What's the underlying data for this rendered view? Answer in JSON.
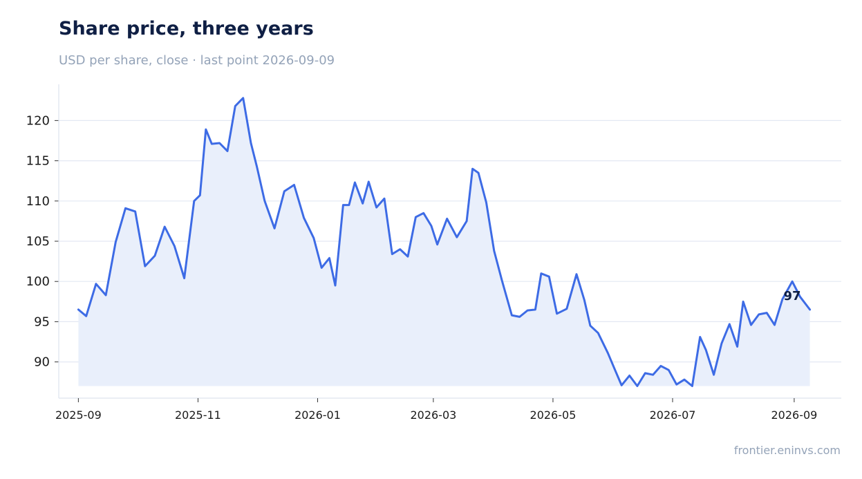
{
  "header": {
    "title": "Share price, three years",
    "subtitle": "USD per share, close · last point 2026-09-09"
  },
  "footer": {
    "source": "frontier.eninvs.com"
  },
  "colors": {
    "line": "#3d6be5",
    "fill": "#e9effb",
    "grid": "#e3e8f3",
    "axis": "#dde3ee"
  },
  "chart_data": {
    "type": "area",
    "title": "Share price, three years",
    "subtitle": "USD per share, close · last point 2026-09-09",
    "xlabel": "",
    "ylabel": "",
    "xlim": [
      "2025-08-22",
      "2026-09-25"
    ],
    "ylim": [
      85.5,
      124.5
    ],
    "grid": true,
    "legend": "none",
    "x_ticks": [
      {
        "date": "2025-09-01",
        "label": "2025-09"
      },
      {
        "date": "2025-11-01",
        "label": "2025-11"
      },
      {
        "date": "2026-01-01",
        "label": "2026-01"
      },
      {
        "date": "2026-03-01",
        "label": "2026-03"
      },
      {
        "date": "2026-05-01",
        "label": "2026-05"
      },
      {
        "date": "2026-07-01",
        "label": "2026-07"
      },
      {
        "date": "2026-09-01",
        "label": "2026-09"
      }
    ],
    "y_ticks": [
      90,
      95,
      100,
      105,
      110,
      115,
      120
    ],
    "fill_baseline": 87,
    "annotation": {
      "text": "97",
      "x": "2026-08-31",
      "y": 98.3
    },
    "series": [
      {
        "x": [
          "2025-09-01",
          "2025-09-05",
          "2025-09-10",
          "2025-09-15",
          "2025-09-20",
          "2025-09-25",
          "2025-09-30",
          "2025-10-05",
          "2025-10-10",
          "2025-10-15",
          "2025-10-20",
          "2025-10-25",
          "2025-10-30",
          "2025-11-02",
          "2025-11-05",
          "2025-11-08",
          "2025-11-12",
          "2025-11-16",
          "2025-11-20",
          "2025-11-24",
          "2025-11-28",
          "2025-12-01",
          "2025-12-05",
          "2025-12-10",
          "2025-12-15",
          "2025-12-20",
          "2025-12-25",
          "2025-12-30",
          "2026-01-03",
          "2026-01-07",
          "2026-01-10",
          "2026-01-14",
          "2026-01-17",
          "2026-01-20",
          "2026-01-24",
          "2026-01-27",
          "2026-01-31",
          "2026-02-04",
          "2026-02-08",
          "2026-02-12",
          "2026-02-16",
          "2026-02-20",
          "2026-02-24",
          "2026-02-28",
          "2026-03-03",
          "2026-03-08",
          "2026-03-13",
          "2026-03-18",
          "2026-03-21",
          "2026-03-24",
          "2026-03-28",
          "2026-04-01",
          "2026-04-05",
          "2026-04-10",
          "2026-04-14",
          "2026-04-18",
          "2026-04-22",
          "2026-04-25",
          "2026-04-29",
          "2026-05-03",
          "2026-05-08",
          "2026-05-13",
          "2026-05-17",
          "2026-05-20",
          "2026-05-24",
          "2026-05-29",
          "2026-06-02",
          "2026-06-05",
          "2026-06-09",
          "2026-06-13",
          "2026-06-17",
          "2026-06-21",
          "2026-06-25",
          "2026-06-29",
          "2026-07-03",
          "2026-07-07",
          "2026-07-11",
          "2026-07-15",
          "2026-07-18",
          "2026-07-22",
          "2026-07-26",
          "2026-07-30",
          "2026-08-03",
          "2026-08-06",
          "2026-08-10",
          "2026-08-14",
          "2026-08-18",
          "2026-08-22",
          "2026-08-26",
          "2026-08-31",
          "2026-09-04",
          "2026-09-09"
        ],
        "values": [
          96.5,
          95.7,
          99.7,
          98.3,
          104.9,
          109.1,
          108.7,
          101.9,
          103.2,
          106.8,
          104.4,
          100.4,
          110.0,
          110.7,
          118.9,
          117.1,
          117.2,
          116.2,
          121.8,
          122.8,
          117.2,
          114.3,
          110.0,
          106.6,
          111.2,
          112.0,
          107.9,
          105.4,
          101.7,
          102.9,
          99.5,
          109.5,
          109.5,
          112.3,
          109.7,
          112.4,
          109.2,
          110.3,
          103.4,
          104.0,
          103.1,
          108.0,
          108.5,
          106.9,
          104.6,
          107.8,
          105.5,
          107.5,
          114.0,
          113.5,
          109.8,
          103.8,
          100.1,
          95.8,
          95.6,
          96.4,
          96.5,
          101.0,
          100.6,
          96.0,
          96.6,
          100.9,
          97.7,
          94.5,
          93.6,
          91.1,
          88.8,
          87.1,
          88.3,
          87.0,
          88.6,
          88.4,
          89.5,
          89.0,
          87.2,
          87.8,
          87.0,
          93.1,
          91.5,
          88.4,
          92.3,
          94.7,
          91.9,
          97.5,
          94.6,
          95.9,
          96.1,
          94.6,
          97.8,
          100.0,
          98.1,
          96.5
        ]
      }
    ]
  }
}
